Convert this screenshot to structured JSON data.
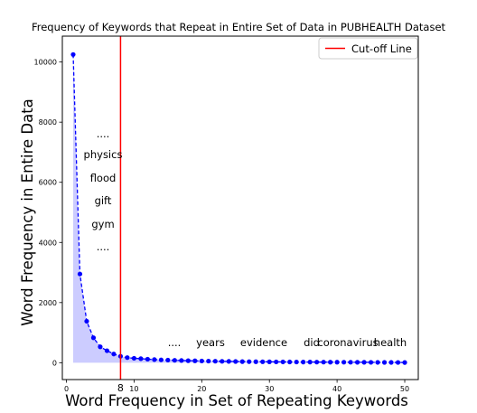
{
  "chart_data": {
    "type": "line",
    "title": "Frequency of Keywords that Repeat in Entire Set of Data in PUBHEALTH Dataset",
    "xlabel": "Word Frequency in Set of Repeating Keywords",
    "ylabel": "Word Frequency in Entire Data",
    "xlim": [
      -0.6,
      52
    ],
    "ylim": [
      -560,
      10860
    ],
    "xticks": [
      0,
      10,
      20,
      30,
      40,
      50
    ],
    "yticks": [
      0,
      2000,
      4000,
      6000,
      8000,
      10000
    ],
    "grid": false,
    "series": [
      {
        "color": "#0000ff",
        "line_style": "dashed",
        "marker": "circle",
        "fill": "#ccccff",
        "x": [
          1,
          2,
          3,
          4,
          5,
          6,
          7,
          8,
          9,
          10,
          11,
          12,
          13,
          14,
          15,
          16,
          17,
          18,
          19,
          20,
          21,
          22,
          23,
          24,
          25,
          26,
          27,
          28,
          29,
          30,
          31,
          32,
          33,
          34,
          35,
          36,
          37,
          38,
          39,
          40,
          41,
          42,
          43,
          44,
          45,
          46,
          47,
          48,
          49,
          50
        ],
        "y": [
          10250,
          2950,
          1380,
          830,
          530,
          400,
          290,
          215,
          170,
          148,
          135,
          118,
          105,
          95,
          88,
          80,
          74,
          68,
          63,
          58,
          54,
          50,
          47,
          44,
          41,
          38,
          36,
          34,
          32,
          30,
          28,
          27,
          25,
          24,
          23,
          22,
          21,
          20,
          19,
          18,
          17,
          16,
          15,
          14,
          13,
          12,
          11,
          10,
          9,
          8
        ]
      }
    ],
    "cutoff_line": {
      "label": "Cut-off Line",
      "x": 8,
      "x_label": "8",
      "color": "#ff0000"
    },
    "legend": {
      "position": "top-right",
      "entries": [
        "Cut-off Line"
      ]
    },
    "annotations": {
      "left_stack": [
        "....",
        "physics",
        "flood",
        "gift",
        "gym",
        "...."
      ],
      "right_row": [
        "....",
        "years",
        "evidence",
        "did",
        "coronavirus",
        "health"
      ]
    }
  }
}
